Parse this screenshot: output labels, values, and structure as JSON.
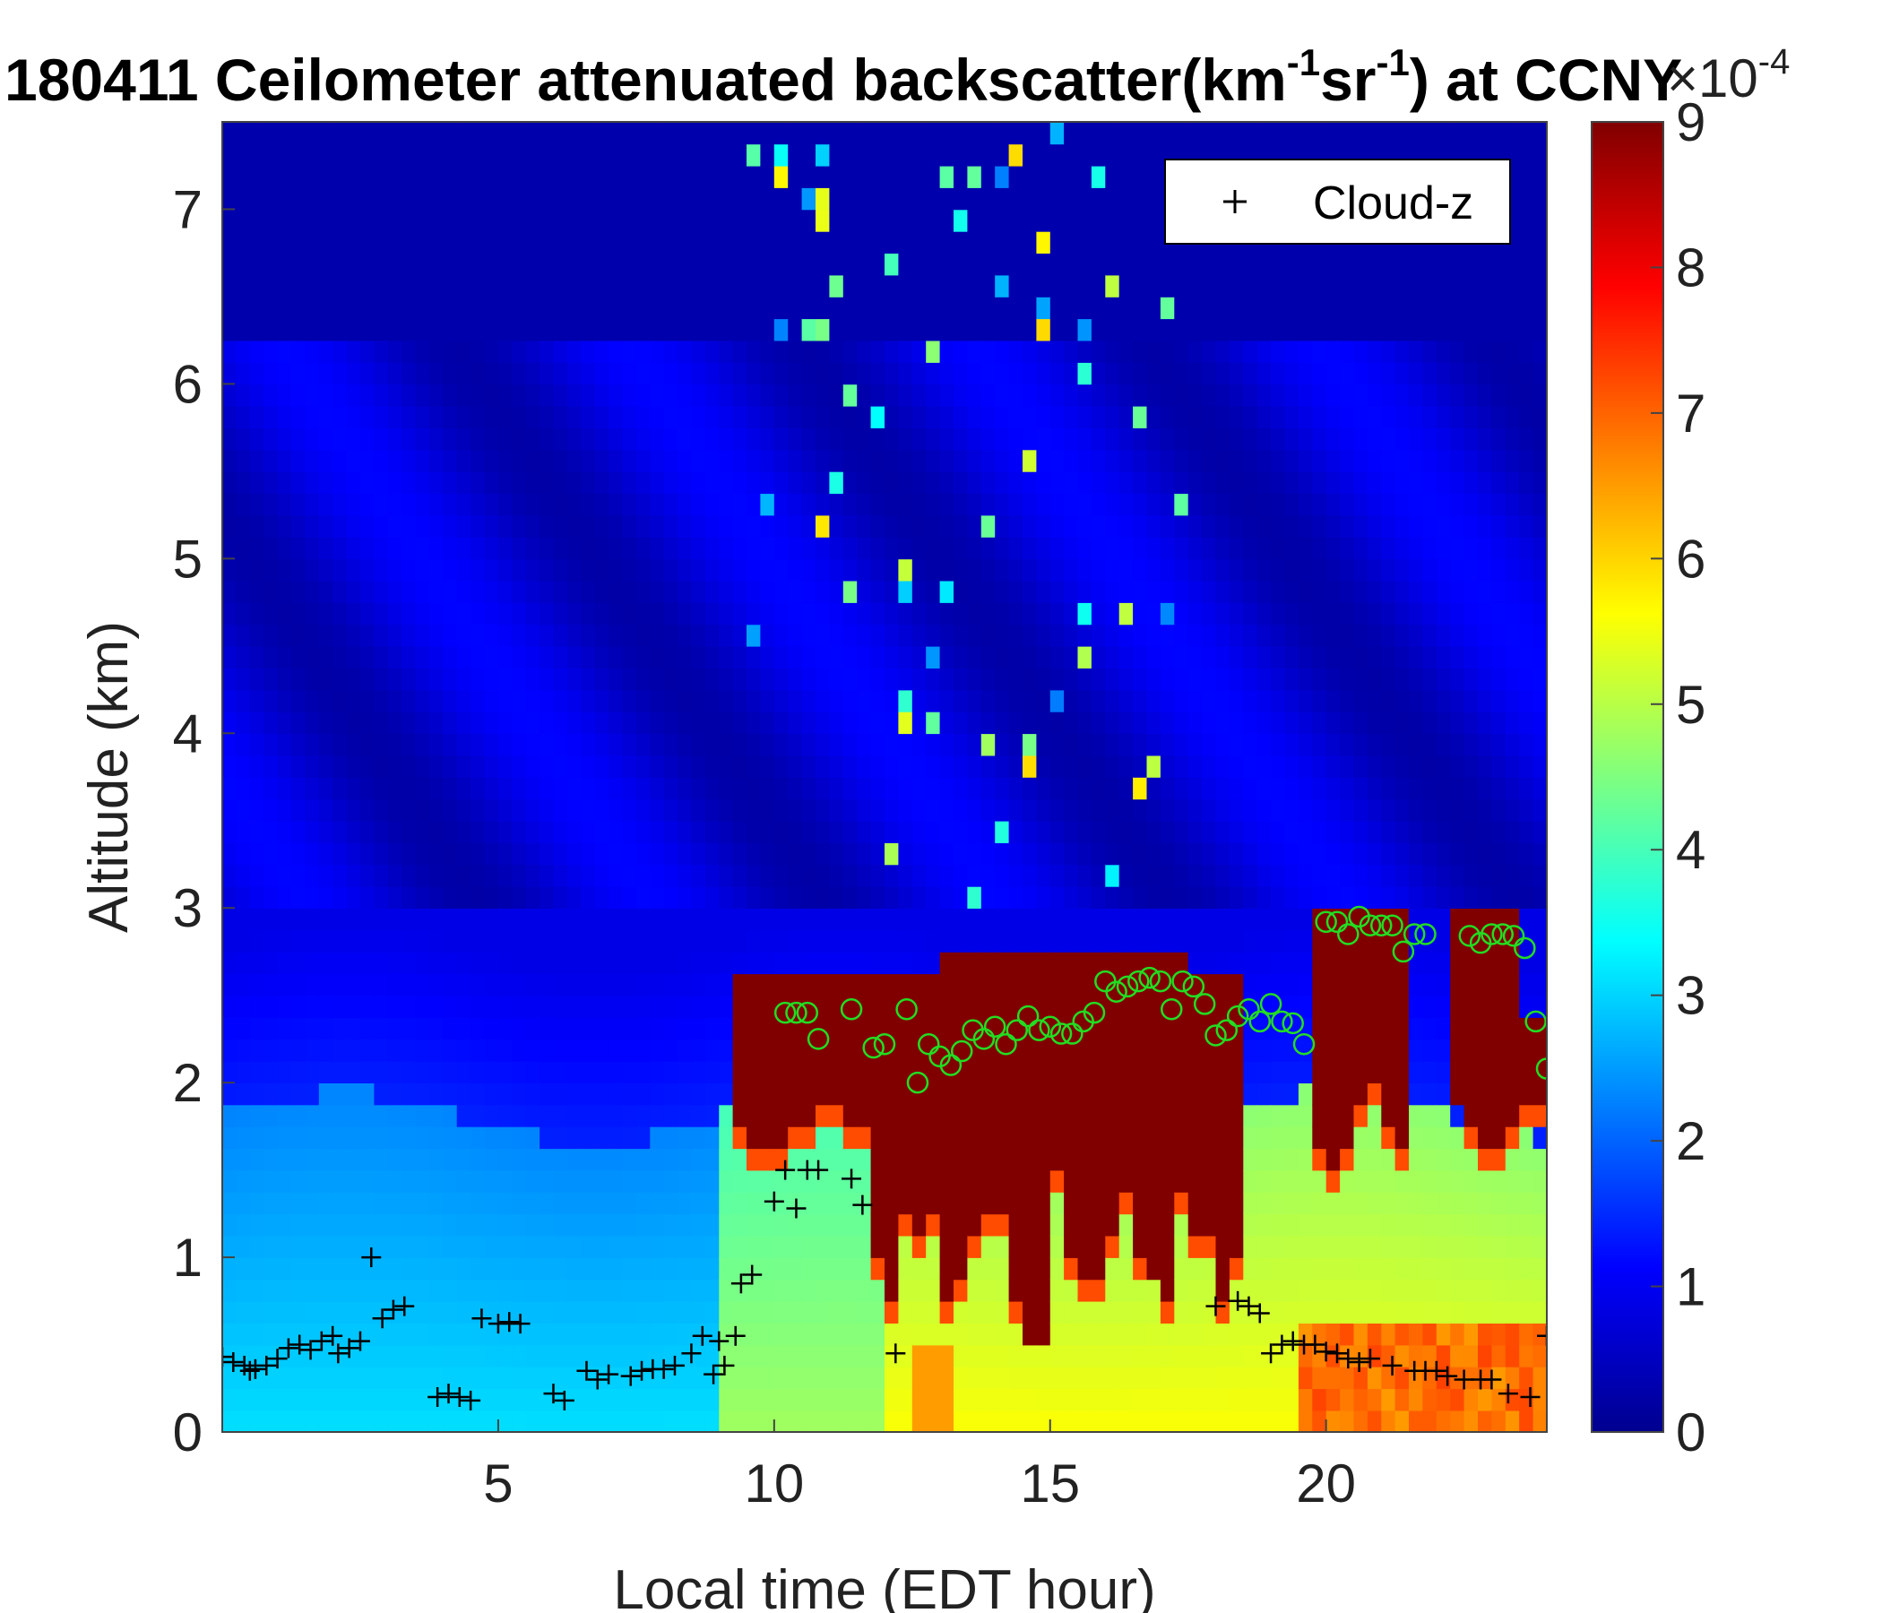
{
  "chart_data": {
    "type": "heatmap",
    "title_parts": {
      "prefix": "180411 Ceilometer attenuated backscatter(km",
      "sup1": "-1",
      "mid": "sr",
      "sup2": "-1",
      "suffix": ") at CCNY"
    },
    "xlabel": "Local time (EDT hour)",
    "ylabel": "Altitude (km)",
    "xlim": [
      0,
      24
    ],
    "ylim": [
      0,
      7.5
    ],
    "xticks": [
      5,
      10,
      15,
      20
    ],
    "yticks": [
      0,
      1,
      2,
      3,
      4,
      5,
      6,
      7
    ],
    "colorbar": {
      "min": 0,
      "max": 9,
      "ticks": [
        0,
        1,
        2,
        3,
        4,
        5,
        6,
        7,
        8,
        9
      ],
      "exponent_base": "×10",
      "exponent": "-4",
      "colormap": "jet"
    },
    "legend": {
      "position": "top-right",
      "marker": "+",
      "label": "Cloud-z"
    },
    "cloud_z": [
      [
        0.0,
        0.43
      ],
      [
        0.2,
        0.4
      ],
      [
        0.4,
        0.38
      ],
      [
        0.5,
        0.35
      ],
      [
        0.6,
        0.36
      ],
      [
        0.8,
        0.38
      ],
      [
        1.0,
        0.42
      ],
      [
        1.2,
        0.48
      ],
      [
        1.4,
        0.5
      ],
      [
        1.6,
        0.47
      ],
      [
        1.8,
        0.52
      ],
      [
        2.0,
        0.55
      ],
      [
        2.1,
        0.45
      ],
      [
        2.3,
        0.48
      ],
      [
        2.5,
        0.52
      ],
      [
        2.7,
        1.0
      ],
      [
        2.9,
        0.65
      ],
      [
        3.1,
        0.7
      ],
      [
        3.3,
        0.72
      ],
      [
        3.9,
        0.2
      ],
      [
        4.1,
        0.22
      ],
      [
        4.3,
        0.2
      ],
      [
        4.5,
        0.18
      ],
      [
        4.7,
        0.65
      ],
      [
        5.0,
        0.62
      ],
      [
        5.2,
        0.63
      ],
      [
        5.4,
        0.62
      ],
      [
        6.0,
        0.22
      ],
      [
        6.2,
        0.18
      ],
      [
        6.6,
        0.35
      ],
      [
        6.8,
        0.3
      ],
      [
        7.0,
        0.33
      ],
      [
        7.4,
        0.32
      ],
      [
        7.6,
        0.35
      ],
      [
        7.8,
        0.36
      ],
      [
        8.0,
        0.36
      ],
      [
        8.2,
        0.38
      ],
      [
        8.5,
        0.45
      ],
      [
        8.7,
        0.55
      ],
      [
        8.9,
        0.33
      ],
      [
        9.0,
        0.52
      ],
      [
        9.1,
        0.38
      ],
      [
        9.3,
        0.55
      ],
      [
        9.4,
        0.85
      ],
      [
        9.6,
        0.9
      ],
      [
        10.0,
        1.32
      ],
      [
        10.2,
        1.5
      ],
      [
        10.4,
        1.28
      ],
      [
        10.6,
        1.5
      ],
      [
        10.8,
        1.5
      ],
      [
        11.4,
        1.45
      ],
      [
        11.6,
        1.3
      ],
      [
        12.2,
        0.45
      ],
      [
        18.0,
        0.72
      ],
      [
        18.4,
        0.75
      ],
      [
        18.6,
        0.72
      ],
      [
        18.8,
        0.68
      ],
      [
        19.0,
        0.45
      ],
      [
        19.2,
        0.5
      ],
      [
        19.4,
        0.52
      ],
      [
        19.6,
        0.5
      ],
      [
        19.8,
        0.5
      ],
      [
        20.0,
        0.46
      ],
      [
        20.2,
        0.45
      ],
      [
        20.4,
        0.42
      ],
      [
        20.6,
        0.4
      ],
      [
        20.8,
        0.42
      ],
      [
        21.2,
        0.38
      ],
      [
        21.6,
        0.35
      ],
      [
        21.8,
        0.35
      ],
      [
        22.0,
        0.35
      ],
      [
        22.2,
        0.32
      ],
      [
        22.5,
        0.3
      ],
      [
        22.8,
        0.3
      ],
      [
        23.0,
        0.3
      ],
      [
        23.3,
        0.22
      ],
      [
        23.7,
        0.2
      ],
      [
        24.0,
        0.55
      ]
    ],
    "top_layer_z": [
      [
        10.2,
        2.4
      ],
      [
        10.4,
        2.4
      ],
      [
        10.6,
        2.4
      ],
      [
        10.8,
        2.25
      ],
      [
        11.4,
        2.42
      ],
      [
        11.8,
        2.2
      ],
      [
        12.0,
        2.22
      ],
      [
        12.4,
        2.42
      ],
      [
        12.6,
        2.0
      ],
      [
        12.8,
        2.22
      ],
      [
        13.0,
        2.15
      ],
      [
        13.2,
        2.1
      ],
      [
        13.4,
        2.18
      ],
      [
        13.6,
        2.3
      ],
      [
        13.8,
        2.25
      ],
      [
        14.0,
        2.32
      ],
      [
        14.2,
        2.22
      ],
      [
        14.4,
        2.3
      ],
      [
        14.6,
        2.38
      ],
      [
        14.8,
        2.3
      ],
      [
        15.0,
        2.32
      ],
      [
        15.2,
        2.28
      ],
      [
        15.4,
        2.28
      ],
      [
        15.6,
        2.35
      ],
      [
        15.8,
        2.4
      ],
      [
        16.0,
        2.58
      ],
      [
        16.2,
        2.52
      ],
      [
        16.4,
        2.55
      ],
      [
        16.6,
        2.58
      ],
      [
        16.8,
        2.6
      ],
      [
        17.0,
        2.58
      ],
      [
        17.2,
        2.42
      ],
      [
        17.4,
        2.58
      ],
      [
        17.6,
        2.55
      ],
      [
        17.8,
        2.45
      ],
      [
        18.0,
        2.27
      ],
      [
        18.2,
        2.3
      ],
      [
        18.4,
        2.38
      ],
      [
        18.6,
        2.42
      ],
      [
        18.8,
        2.35
      ],
      [
        19.0,
        2.45
      ],
      [
        19.2,
        2.35
      ],
      [
        19.4,
        2.34
      ],
      [
        19.6,
        2.22
      ],
      [
        20.0,
        2.92
      ],
      [
        20.2,
        2.92
      ],
      [
        20.4,
        2.85
      ],
      [
        20.6,
        2.95
      ],
      [
        20.8,
        2.9
      ],
      [
        21.0,
        2.9
      ],
      [
        21.2,
        2.9
      ],
      [
        21.4,
        2.75
      ],
      [
        21.6,
        2.85
      ],
      [
        21.8,
        2.85
      ],
      [
        22.6,
        2.84
      ],
      [
        22.8,
        2.8
      ],
      [
        23.0,
        2.85
      ],
      [
        23.2,
        2.85
      ],
      [
        23.4,
        2.84
      ],
      [
        23.6,
        2.77
      ],
      [
        23.8,
        2.35
      ],
      [
        24.0,
        2.08
      ]
    ]
  }
}
